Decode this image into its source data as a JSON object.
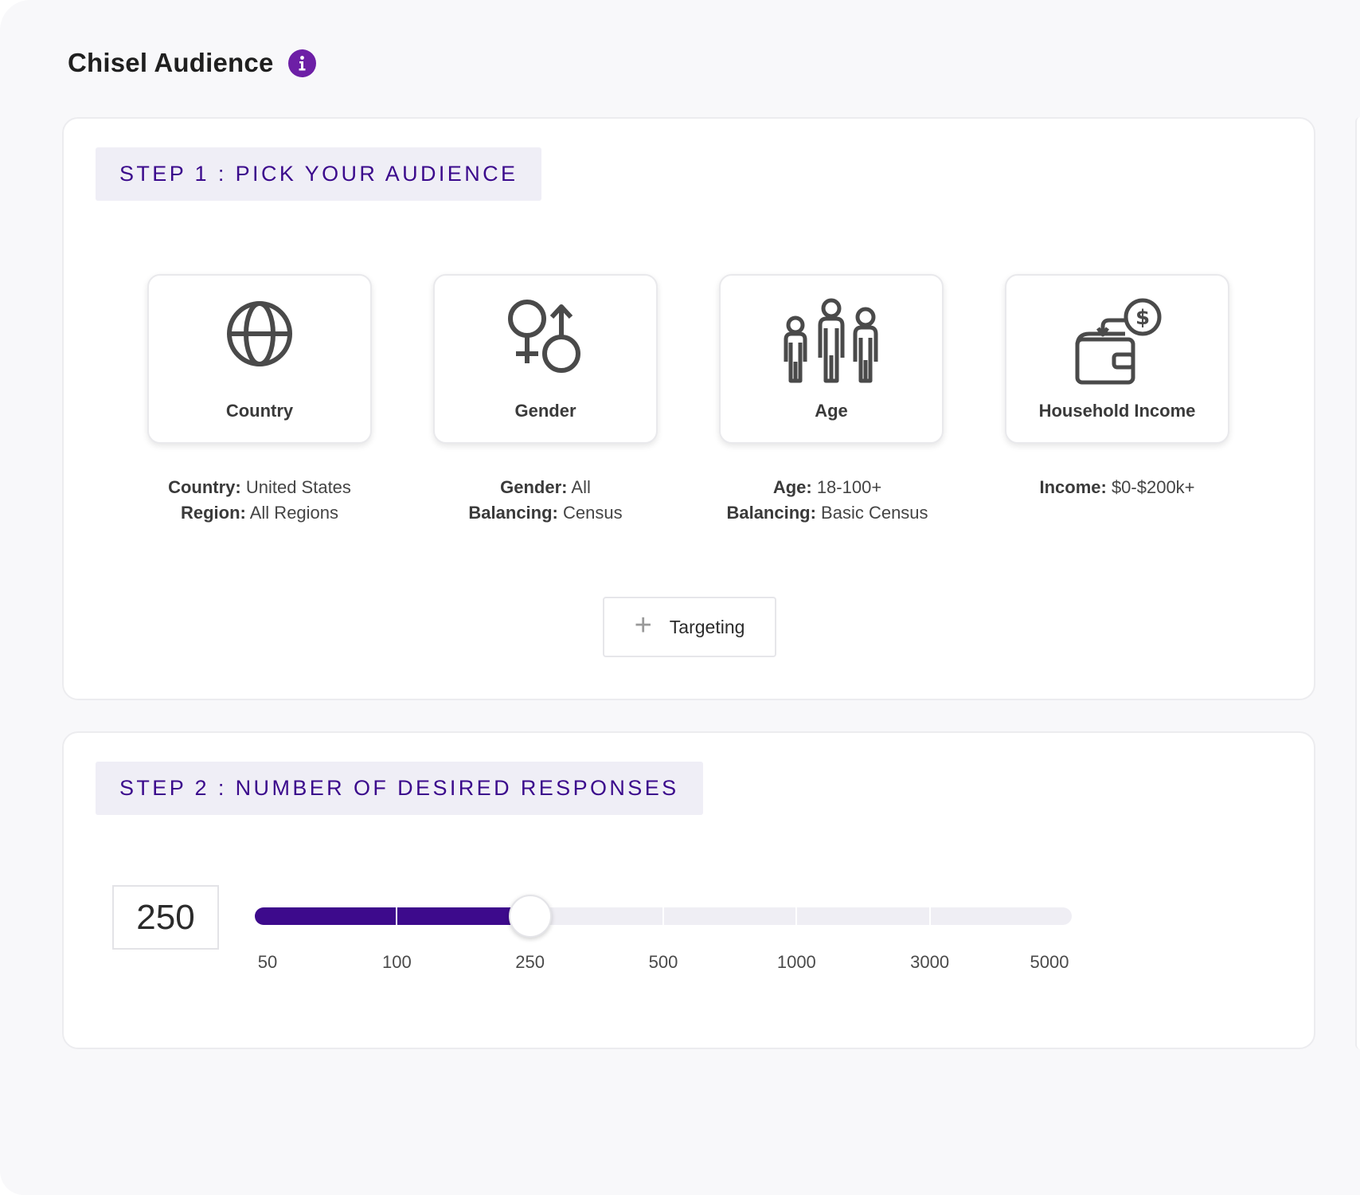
{
  "header": {
    "title": "Chisel Audience",
    "info_icon": "info-icon"
  },
  "step1": {
    "label": "STEP 1 : PICK YOUR AUDIENCE",
    "cards": [
      {
        "label": "Country",
        "icon": "globe-icon",
        "lines": [
          {
            "key": "Country:",
            "value": " United States"
          },
          {
            "key": "Region:",
            "value": " All Regions"
          }
        ]
      },
      {
        "label": "Gender",
        "icon": "gender-icon",
        "lines": [
          {
            "key": "Gender:",
            "value": " All"
          },
          {
            "key": "Balancing:",
            "value": " Census"
          }
        ]
      },
      {
        "label": "Age",
        "icon": "people-icon",
        "lines": [
          {
            "key": "Age:",
            "value": " 18-100+"
          },
          {
            "key": "Balancing:",
            "value": " Basic Census"
          }
        ]
      },
      {
        "label": "Household Income",
        "icon": "wallet-icon",
        "lines": [
          {
            "key": "Income:",
            "value": " $0-$200k+"
          }
        ]
      }
    ],
    "add_targeting": {
      "icon": "plus-icon",
      "label": "Targeting"
    }
  },
  "step2": {
    "label": "STEP 2 : NUMBER OF DESIRED RESPONSES",
    "value": "250",
    "slider": {
      "ticks": [
        "50",
        "100",
        "250",
        "500",
        "1000",
        "3000",
        "5000"
      ],
      "selected_index": 2
    }
  },
  "colors": {
    "accent": "#3d0a8c",
    "info": "#6d1fa6",
    "step_bg": "#efeef6"
  }
}
